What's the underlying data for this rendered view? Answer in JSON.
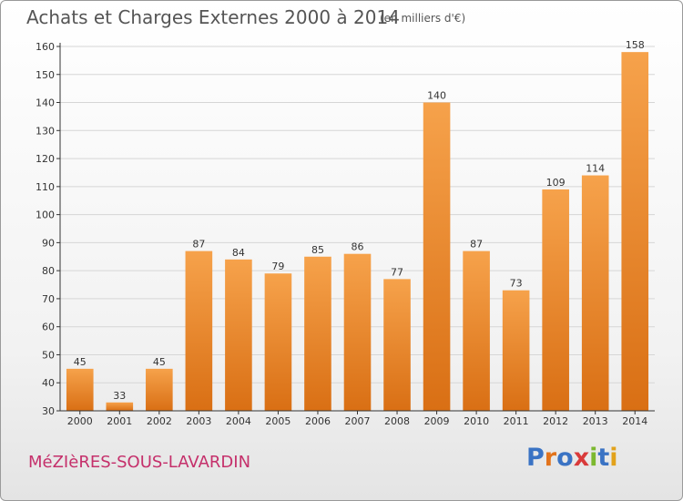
{
  "header": {
    "title": "Achats et Charges Externes 2000 à 2014",
    "subtitle": "(en milliers d'€)"
  },
  "footer": {
    "place": "MéZIèRES-SOUS-LAVARDIN",
    "brand": "Proxiti",
    "brand_colors": [
      "#3a73c4",
      "#e2731b",
      "#3a73c4",
      "#d93a3a",
      "#7cb82f",
      "#3a73c4",
      "#e2a21b"
    ]
  },
  "colors": {
    "bar_top": "#f6a24b",
    "bar_bottom": "#d96f14",
    "grid": "#d6d6d6",
    "axis": "#333333",
    "text": "#333333"
  },
  "chart_data": {
    "type": "bar",
    "categories": [
      "2000",
      "2001",
      "2002",
      "2003",
      "2004",
      "2005",
      "2006",
      "2007",
      "2008",
      "2009",
      "2010",
      "2011",
      "2012",
      "2013",
      "2014"
    ],
    "values": [
      45,
      33,
      45,
      87,
      84,
      79,
      85,
      86,
      77,
      140,
      87,
      73,
      109,
      114,
      158
    ],
    "ylim": [
      30,
      160
    ],
    "yticks": [
      30,
      40,
      50,
      60,
      70,
      80,
      90,
      100,
      110,
      120,
      130,
      140,
      150,
      160
    ],
    "grid": true,
    "show_data_labels": true
  }
}
